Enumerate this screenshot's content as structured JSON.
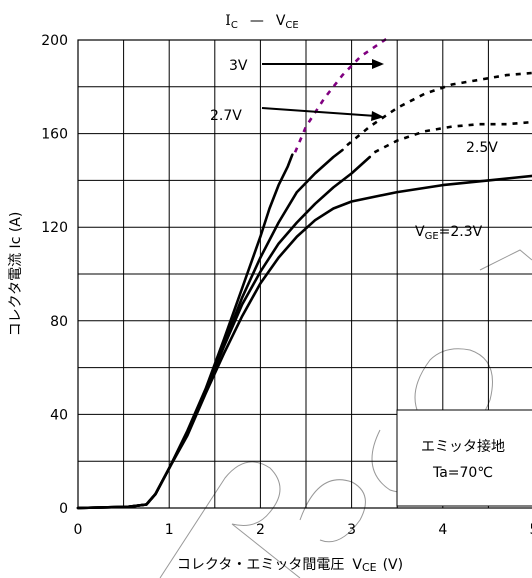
{
  "chart_data": {
    "type": "line",
    "title_main": "I",
    "title_main_sub": "C",
    "title_sep": "—",
    "title_x": "V",
    "title_x_sub": "CE",
    "xlabel": "コレクタ・エミッタ間電圧",
    "xlabel_sym": "V",
    "xlabel_sub": "CE",
    "xlabel_unit": "(V)",
    "ylabel": "コレクタ電流 Ic (A)",
    "xlim": [
      0,
      5
    ],
    "ylim": [
      0,
      200
    ],
    "x_ticks": [
      "0",
      "1",
      "2",
      "3",
      "4",
      "5"
    ],
    "y_ticks": [
      "0",
      "40",
      "80",
      "120",
      "160",
      "200"
    ],
    "grid": true,
    "series": [
      {
        "name": "3V",
        "color": "#000000",
        "points": [
          [
            0,
            0
          ],
          [
            0.55,
            0.5
          ],
          [
            0.75,
            1.5
          ],
          [
            0.85,
            6
          ],
          [
            1,
            17
          ],
          [
            1.2,
            33
          ],
          [
            1.4,
            51
          ],
          [
            1.6,
            72
          ],
          [
            1.8,
            94
          ],
          [
            2,
            116
          ],
          [
            2.1,
            128
          ],
          [
            2.2,
            138
          ],
          [
            2.3,
            146
          ],
          [
            2.35,
            151
          ]
        ],
        "dashed_color": "#800080",
        "dashed_points": [
          [
            2.38,
            152
          ],
          [
            2.5,
            163
          ],
          [
            2.7,
            175
          ],
          [
            2.9,
            185
          ],
          [
            3.1,
            193
          ],
          [
            3.4,
            201
          ]
        ]
      },
      {
        "name": "2.7V",
        "color": "#000000",
        "points": [
          [
            0,
            0
          ],
          [
            0.55,
            0.5
          ],
          [
            0.75,
            1.5
          ],
          [
            0.85,
            6
          ],
          [
            1,
            17
          ],
          [
            1.2,
            32
          ],
          [
            1.4,
            50
          ],
          [
            1.6,
            70
          ],
          [
            1.8,
            90
          ],
          [
            2,
            107
          ],
          [
            2.2,
            122
          ],
          [
            2.4,
            135
          ],
          [
            2.6,
            143
          ],
          [
            2.8,
            150
          ],
          [
            2.9,
            153
          ]
        ],
        "dashed_color": "#000000",
        "dashed_points": [
          [
            2.95,
            155
          ],
          [
            3.2,
            163
          ],
          [
            3.5,
            171
          ],
          [
            3.8,
            177
          ],
          [
            4.1,
            181
          ],
          [
            4.4,
            183
          ],
          [
            4.7,
            185
          ],
          [
            5,
            186
          ]
        ]
      },
      {
        "name": "2.5V",
        "color": "#000000",
        "points": [
          [
            0,
            0
          ],
          [
            0.55,
            0.5
          ],
          [
            0.75,
            1.5
          ],
          [
            0.85,
            6
          ],
          [
            1,
            17
          ],
          [
            1.2,
            32
          ],
          [
            1.4,
            50
          ],
          [
            1.6,
            69
          ],
          [
            1.8,
            87
          ],
          [
            2,
            101
          ],
          [
            2.2,
            113
          ],
          [
            2.4,
            122
          ],
          [
            2.6,
            130
          ],
          [
            2.8,
            137
          ],
          [
            3,
            143
          ],
          [
            3.2,
            150
          ]
        ],
        "dashed_color": "#000000",
        "dashed_points": [
          [
            3.25,
            152
          ],
          [
            3.5,
            157
          ],
          [
            3.8,
            161
          ],
          [
            4.1,
            163
          ],
          [
            4.4,
            164
          ],
          [
            4.7,
            164
          ],
          [
            5,
            165
          ]
        ]
      },
      {
        "name": "VGE=2.3V",
        "color": "#000000",
        "points": [
          [
            0,
            0
          ],
          [
            0.55,
            0.5
          ],
          [
            0.75,
            1.5
          ],
          [
            0.85,
            6
          ],
          [
            1,
            17
          ],
          [
            1.2,
            31
          ],
          [
            1.4,
            49
          ],
          [
            1.6,
            66
          ],
          [
            1.8,
            82
          ],
          [
            2,
            96
          ],
          [
            2.2,
            107
          ],
          [
            2.4,
            116
          ],
          [
            2.6,
            123
          ],
          [
            2.8,
            128
          ],
          [
            3,
            131
          ],
          [
            3.5,
            135
          ],
          [
            4,
            138
          ],
          [
            4.5,
            140
          ],
          [
            5,
            142
          ]
        ]
      }
    ],
    "annotations": [
      {
        "text": "3V"
      },
      {
        "text": "2.7V"
      },
      {
        "text": "2.5V"
      },
      {
        "text": "V",
        "sub": "GE",
        "rest": "=2.3V"
      }
    ],
    "note_lines": [
      "エミッタ接地",
      "Ta=70℃"
    ]
  }
}
